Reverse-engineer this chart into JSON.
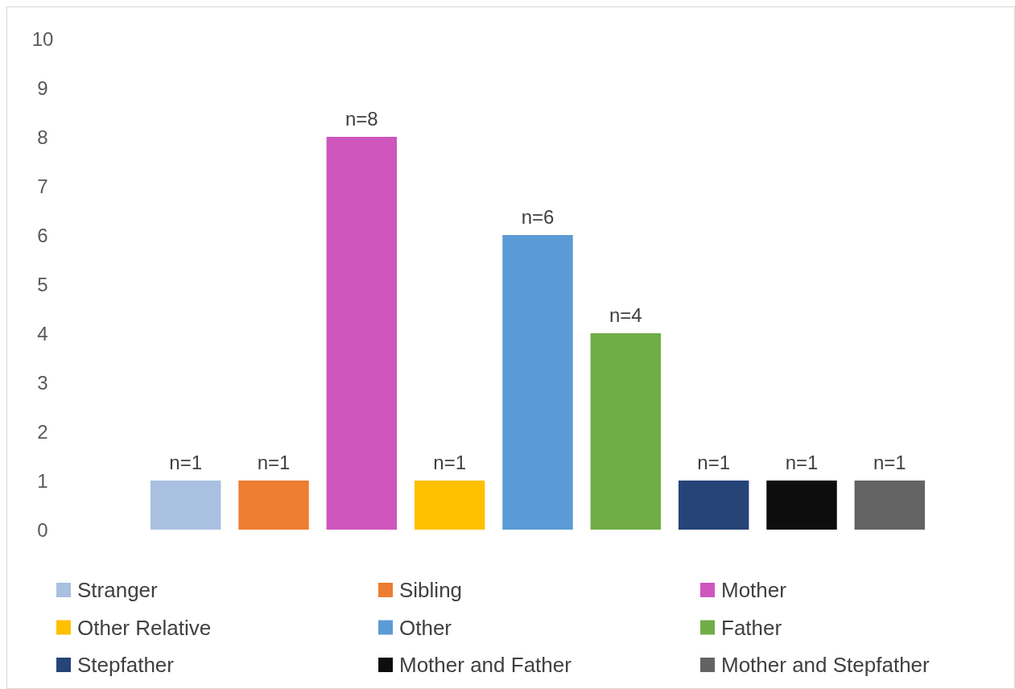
{
  "chart_data": {
    "type": "bar",
    "categories": [
      null,
      null,
      null,
      null,
      null,
      null,
      null,
      null,
      null
    ],
    "series": [
      {
        "name": "Stranger",
        "color": "#a9c0e0",
        "values": [
          1,
          null,
          null,
          null,
          null,
          null,
          null,
          null,
          null
        ],
        "value_labels": [
          "n=1",
          null,
          null,
          null,
          null,
          null,
          null,
          null,
          null
        ]
      },
      {
        "name": "Sibling",
        "color": "#ed7d31",
        "values": [
          null,
          1,
          null,
          null,
          null,
          null,
          null,
          null,
          null
        ],
        "value_labels": [
          null,
          "n=1",
          null,
          null,
          null,
          null,
          null,
          null,
          null
        ]
      },
      {
        "name": "Mother",
        "color": "#cf56bd",
        "values": [
          null,
          null,
          8,
          null,
          null,
          null,
          null,
          null,
          null
        ],
        "value_labels": [
          null,
          null,
          "n=8",
          null,
          null,
          null,
          null,
          null,
          null
        ]
      },
      {
        "name": "Other Relative",
        "color": "#ffc000",
        "values": [
          null,
          null,
          null,
          1,
          null,
          null,
          null,
          null,
          null
        ],
        "value_labels": [
          null,
          null,
          null,
          "n=1",
          null,
          null,
          null,
          null,
          null
        ]
      },
      {
        "name": "Other",
        "color": "#5b9bd5",
        "values": [
          null,
          null,
          null,
          null,
          6,
          null,
          null,
          null,
          null
        ],
        "value_labels": [
          null,
          null,
          null,
          null,
          "n=6",
          null,
          null,
          null,
          null
        ]
      },
      {
        "name": "Father",
        "color": "#70ad47",
        "values": [
          null,
          null,
          null,
          null,
          null,
          4,
          null,
          null,
          null
        ],
        "value_labels": [
          null,
          null,
          null,
          null,
          null,
          "n=4",
          null,
          null,
          null
        ]
      },
      {
        "name": "Stepfather",
        "color": "#264478",
        "values": [
          null,
          null,
          null,
          null,
          null,
          null,
          1,
          null,
          null
        ],
        "value_labels": [
          null,
          null,
          null,
          null,
          null,
          null,
          "n=1",
          null,
          null
        ]
      },
      {
        "name": "Mother and Father",
        "color": "#0d0d0d",
        "values": [
          null,
          null,
          null,
          null,
          null,
          null,
          null,
          1,
          null
        ],
        "value_labels": [
          null,
          null,
          null,
          null,
          null,
          null,
          null,
          "n=1",
          null
        ]
      },
      {
        "name": "Mother and Stepfather",
        "color": "#636363",
        "values": [
          null,
          null,
          null,
          null,
          null,
          null,
          null,
          null,
          1
        ],
        "value_labels": [
          null,
          null,
          null,
          null,
          null,
          null,
          null,
          null,
          "n=1"
        ]
      }
    ],
    "ylim": [
      0,
      10
    ],
    "yticks": [
      0,
      1,
      2,
      3,
      4,
      5,
      6,
      7,
      8,
      9,
      10
    ],
    "tick_labels": "y",
    "legend": "bottom",
    "grid": false,
    "stacked": true
  }
}
